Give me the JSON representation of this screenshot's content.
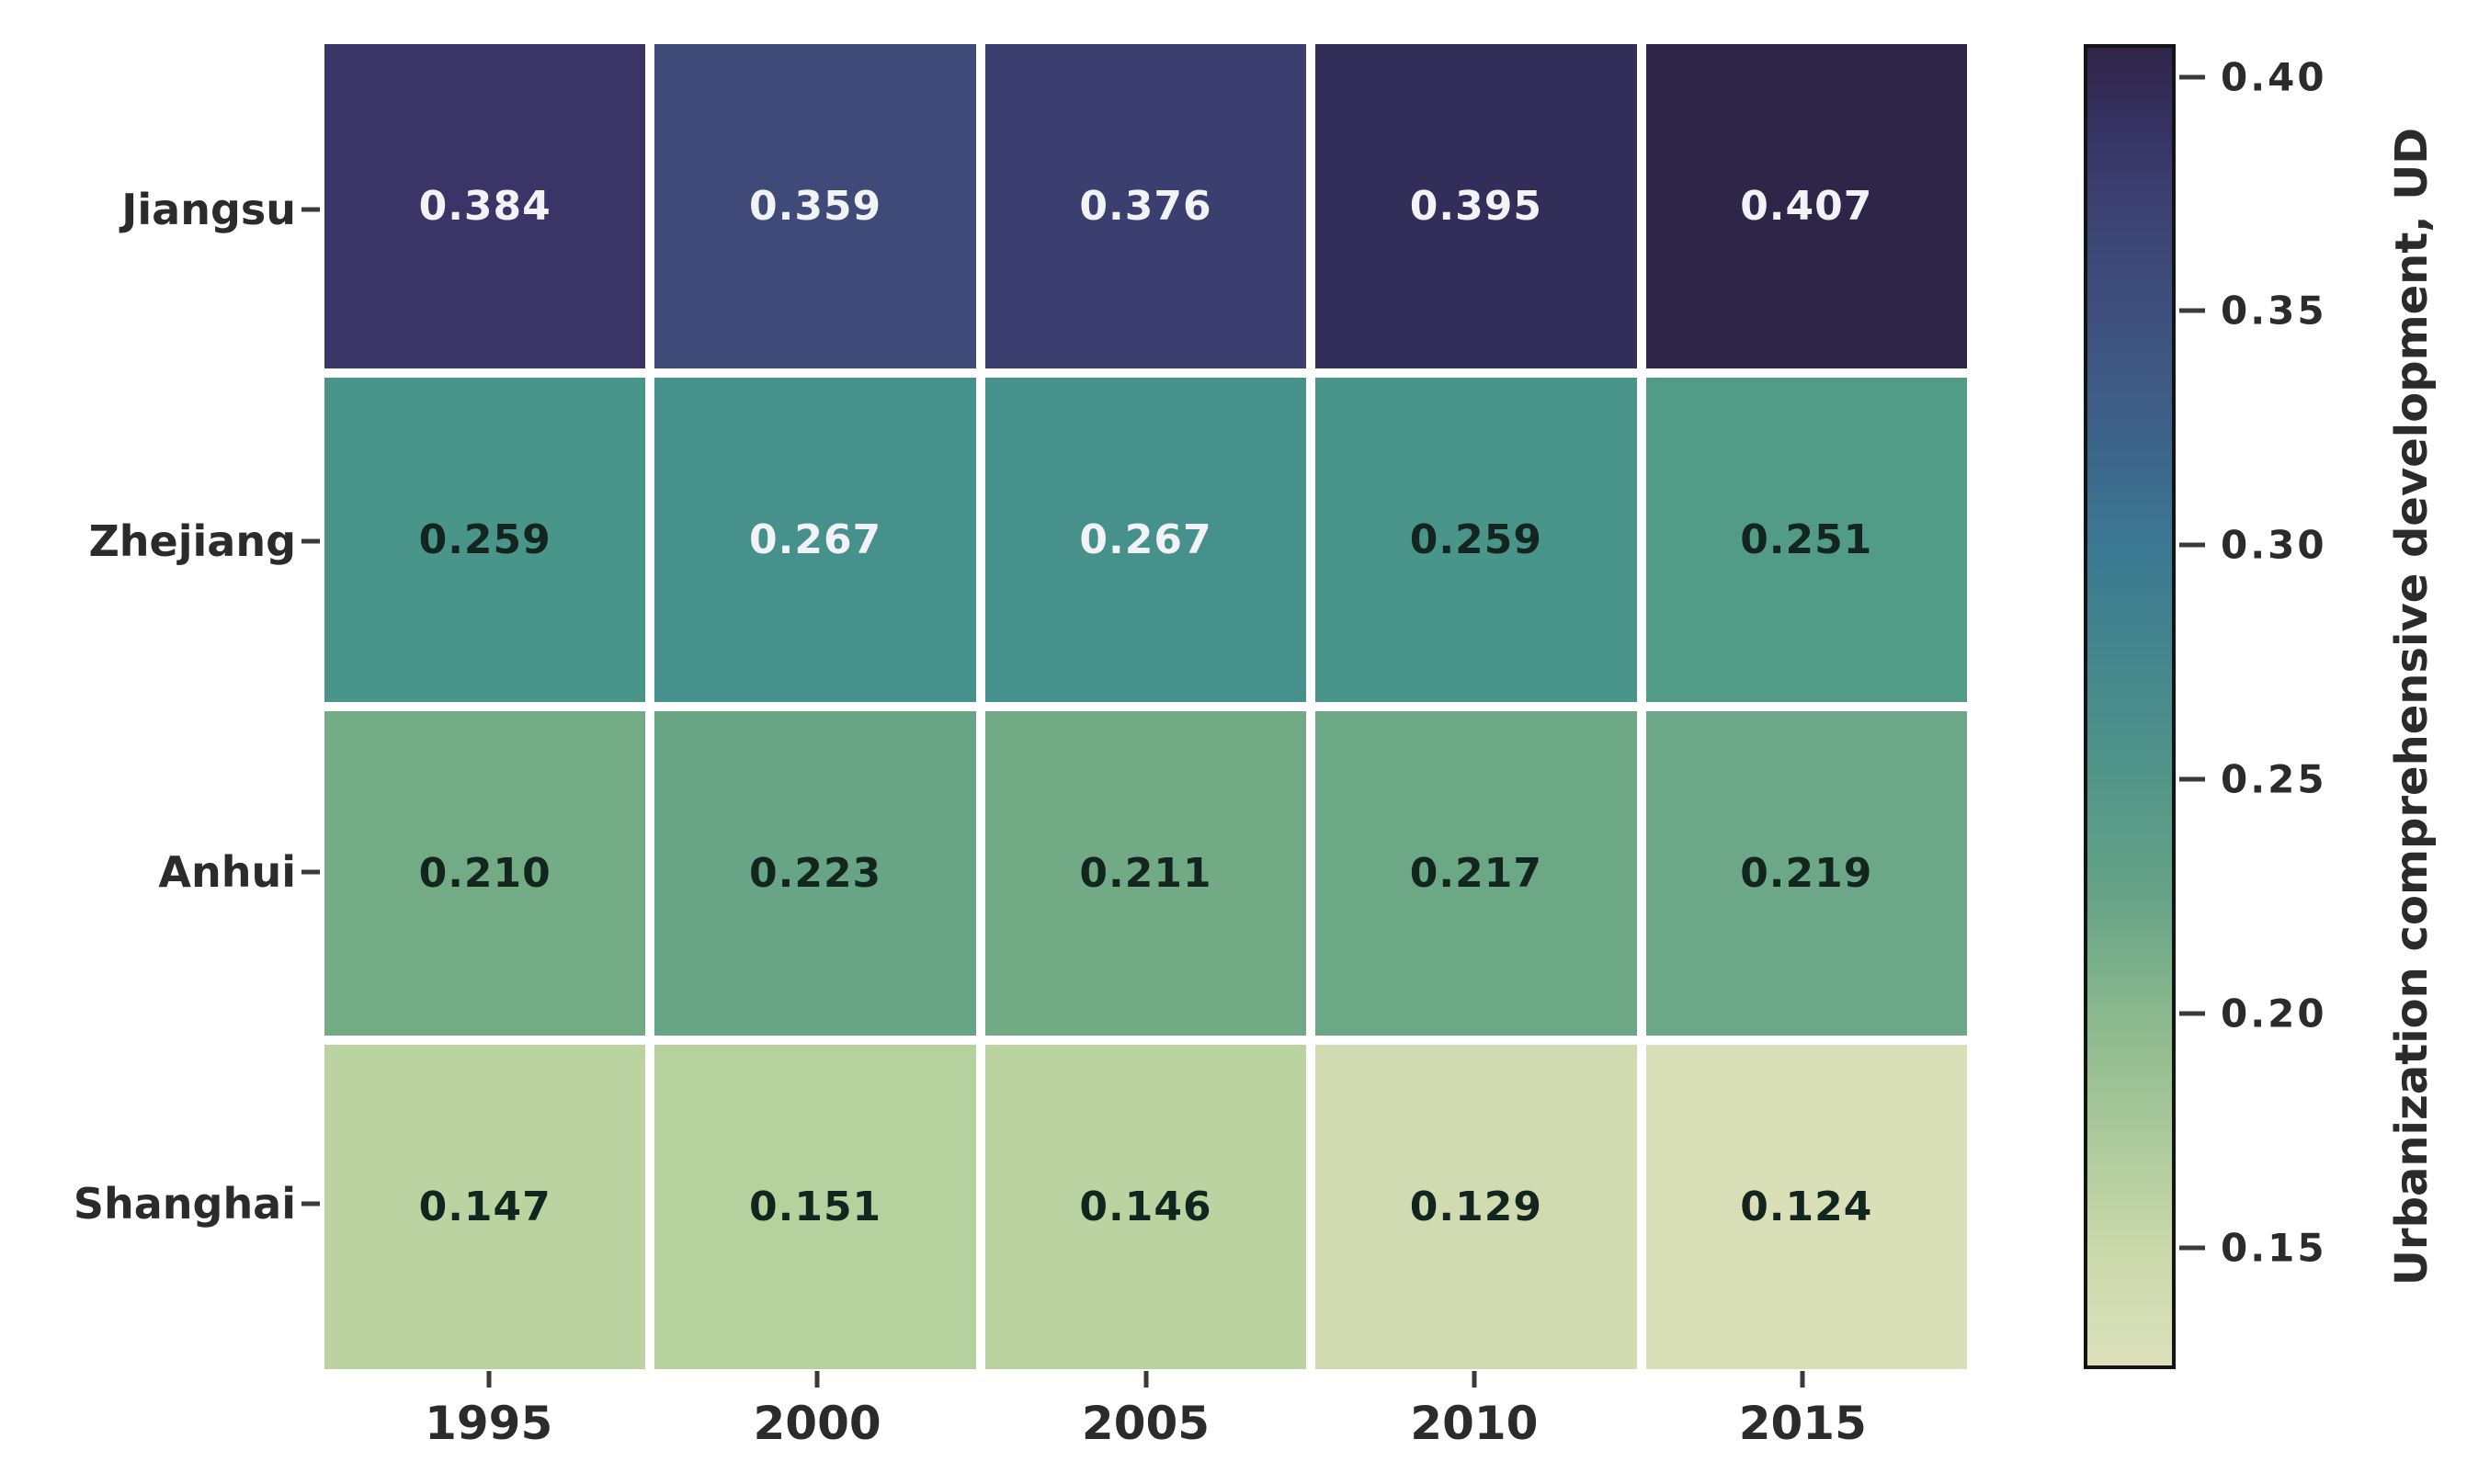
{
  "chart_data": {
    "type": "heatmap",
    "title": "",
    "xlabel": "",
    "ylabel": "",
    "rows": [
      "Jiangsu",
      "Zhejiang",
      "Anhui",
      "Shanghai"
    ],
    "columns": [
      "1995",
      "2000",
      "2005",
      "2010",
      "2015"
    ],
    "values": [
      [
        0.384,
        0.359,
        0.376,
        0.395,
        0.407
      ],
      [
        0.259,
        0.267,
        0.267,
        0.259,
        0.251
      ],
      [
        0.21,
        0.223,
        0.211,
        0.217,
        0.219
      ],
      [
        0.147,
        0.151,
        0.146,
        0.129,
        0.124
      ]
    ],
    "value_labels": [
      [
        "0.384",
        "0.359",
        "0.376",
        "0.395",
        "0.407"
      ],
      [
        "0.259",
        "0.267",
        "0.267",
        "0.259",
        "0.251"
      ],
      [
        "0.210",
        "0.223",
        "0.211",
        "0.217",
        "0.219"
      ],
      [
        "0.147",
        "0.151",
        "0.146",
        "0.129",
        "0.124"
      ]
    ],
    "cell_colors": [
      [
        "#3a3566",
        "#3f4a79",
        "#3b3f70",
        "#332e59",
        "#2f2549"
      ],
      [
        "#4a9589",
        "#47918c",
        "#47918c",
        "#4a9589",
        "#529b87"
      ],
      [
        "#73ab85",
        "#68a587",
        "#72aa85",
        "#6da886",
        "#6ca787"
      ],
      [
        "#bad3a0",
        "#b6d19d",
        "#bbd3a1",
        "#d1dbb2",
        "#d9e0b8"
      ]
    ],
    "cell_text_tone": [
      [
        "light",
        "light",
        "light",
        "light",
        "light"
      ],
      [
        "dark",
        "light",
        "light",
        "dark",
        "dark"
      ],
      [
        "dark",
        "dark",
        "dark",
        "dark",
        "dark"
      ],
      [
        "dark",
        "dark",
        "dark",
        "dark",
        "dark"
      ]
    ],
    "annotation_colors": {
      "light": "#f2f3f7",
      "dark": "#12251e"
    },
    "gridline_color": "#ffffff",
    "colorbar": {
      "label": "Urbanization comprehensive development, UD",
      "tick_labels": [
        "0.40",
        "0.35",
        "0.30",
        "0.25",
        "0.20",
        "0.15"
      ],
      "tick_values": [
        0.4,
        0.35,
        0.3,
        0.25,
        0.2,
        0.15
      ],
      "vmin": 0.124,
      "vmax": 0.407,
      "gradient_stops": [
        {
          "value": 0.124,
          "color": "#dce1bc"
        },
        {
          "value": 0.15,
          "color": "#c9d8a9"
        },
        {
          "value": 0.175,
          "color": "#a9c89a"
        },
        {
          "value": 0.2,
          "color": "#89b88d"
        },
        {
          "value": 0.225,
          "color": "#66a387"
        },
        {
          "value": 0.25,
          "color": "#529689"
        },
        {
          "value": 0.275,
          "color": "#44878d"
        },
        {
          "value": 0.3,
          "color": "#3b7892"
        },
        {
          "value": 0.325,
          "color": "#3d6189"
        },
        {
          "value": 0.35,
          "color": "#3e4f7e"
        },
        {
          "value": 0.375,
          "color": "#3b4070"
        },
        {
          "value": 0.39,
          "color": "#363262"
        },
        {
          "value": 0.407,
          "color": "#2f2549"
        }
      ]
    }
  }
}
